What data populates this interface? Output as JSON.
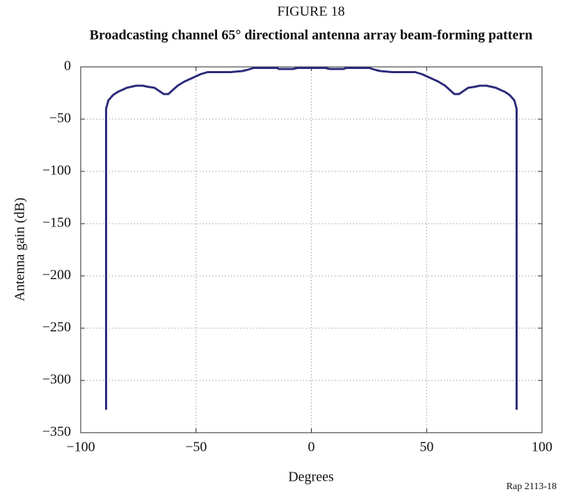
{
  "chart_data": {
    "type": "line",
    "label": "FIGURE 18",
    "title": "Broadcasting channel 65° directional antenna array beam-forming pattern",
    "x_label": "Degrees",
    "y_label": "Antenna gain (dB)",
    "source": "Rap 2113-18",
    "color": "#2b2a7a",
    "grid": true,
    "xlim": [
      -100,
      100
    ],
    "xticks": [
      {
        "value": -100,
        "label": "−100"
      },
      {
        "value": -50,
        "label": "−50"
      },
      0,
      50,
      100
    ],
    "ylim": [
      -350,
      0
    ],
    "yticks": [
      0,
      {
        "value": -50,
        "label": "−50"
      },
      {
        "value": -100,
        "label": "−100"
      },
      {
        "value": -150,
        "label": "−150"
      },
      {
        "value": -200,
        "label": "−200"
      },
      {
        "value": -250,
        "label": "−250"
      },
      {
        "value": -300,
        "label": "−300"
      },
      {
        "value": -350,
        "label": "−350"
      }
    ],
    "x": [
      -89,
      -89,
      -88,
      -86,
      -84,
      -82,
      -80,
      -78,
      -76,
      -73,
      -71,
      -68,
      -66,
      -64,
      -62,
      -60,
      -58,
      -55,
      -52,
      -50,
      -48,
      -45,
      -35,
      -30,
      -28,
      -25,
      -15,
      -14,
      -8,
      -6,
      0,
      6,
      8,
      14,
      15,
      25,
      28,
      30,
      35,
      45,
      48,
      50,
      52,
      55,
      58,
      60,
      62,
      64,
      66,
      68,
      71,
      73,
      76,
      78,
      80,
      82,
      84,
      86,
      88,
      89,
      89
    ],
    "values": [
      -328,
      -40,
      -32,
      -27,
      -24,
      -22,
      -20,
      -19,
      -18,
      -18,
      -19,
      -20,
      -23,
      -26,
      -26,
      -22,
      -18,
      -14,
      -11,
      -9,
      -7,
      -5,
      -5,
      -4,
      -3,
      -1,
      -1,
      -2,
      -2,
      -1,
      -1,
      -1,
      -2,
      -2,
      -1,
      -1,
      -3,
      -4,
      -5,
      -5,
      -7,
      -9,
      -11,
      -14,
      -18,
      -22,
      -26,
      -26,
      -23,
      -20,
      -19,
      -18,
      -18,
      -19,
      -20,
      -22,
      -24,
      -27,
      -32,
      -40,
      -328
    ]
  }
}
